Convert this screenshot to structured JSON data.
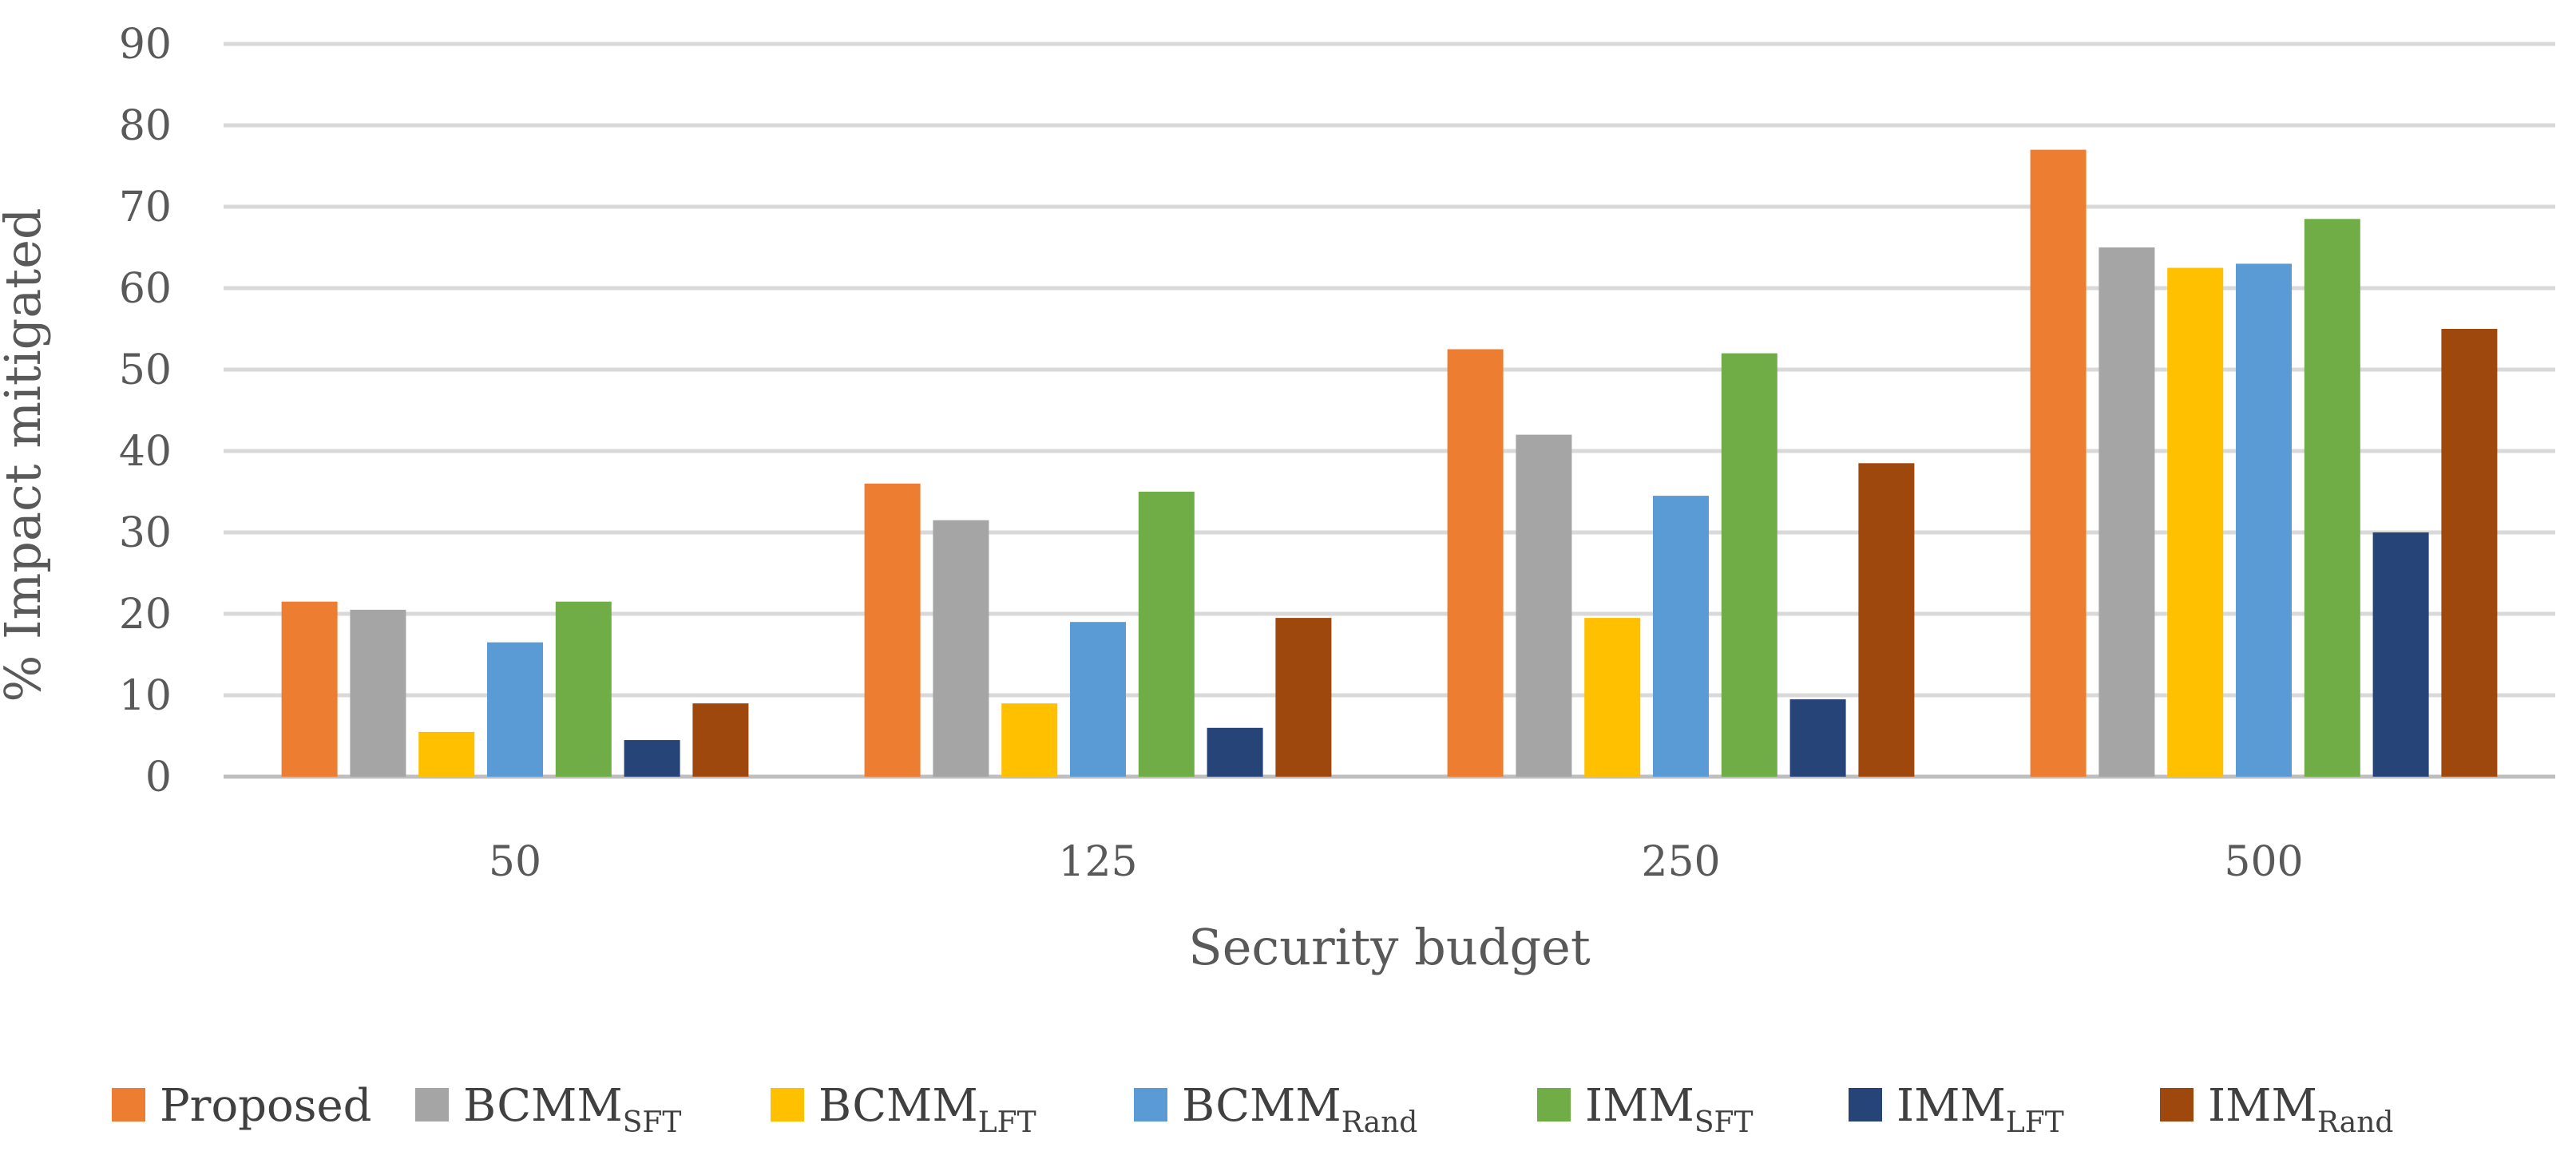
{
  "chart_data": {
    "type": "bar",
    "title": "",
    "xlabel": "Security budget",
    "ylabel": "% Impact mitigated",
    "categories": [
      "50",
      "125",
      "250",
      "500"
    ],
    "ylim": [
      0,
      90
    ],
    "yticks": [
      "0",
      "10",
      "20",
      "30",
      "40",
      "50",
      "60",
      "70",
      "80",
      "90"
    ],
    "grid": true,
    "legend_position": "bottom",
    "series": [
      {
        "name": "Proposed",
        "base": "Proposed",
        "sub": "",
        "color": "#ED7D31",
        "values": [
          21.5,
          36,
          52.5,
          77
        ]
      },
      {
        "name": "BCMM_SFT",
        "base": "BCMM",
        "sub": "SFT",
        "color": "#A5A5A5",
        "values": [
          20.5,
          31.5,
          42,
          65
        ]
      },
      {
        "name": "BCMM_LFT",
        "base": "BCMM",
        "sub": "LFT",
        "color": "#FFC000",
        "values": [
          5.5,
          9,
          19.5,
          62.5
        ]
      },
      {
        "name": "BCMM_Rand",
        "base": "BCMM",
        "sub": "Rand",
        "color": "#5B9BD5",
        "values": [
          16.5,
          19,
          34.5,
          63
        ]
      },
      {
        "name": "IMM_SFT",
        "base": "IMM",
        "sub": "SFT",
        "color": "#70AD47",
        "values": [
          21.5,
          35,
          52,
          68.5
        ]
      },
      {
        "name": "IMM_LFT",
        "base": "IMM",
        "sub": "LFT",
        "color": "#264478",
        "values": [
          4.5,
          6,
          9.5,
          30
        ]
      },
      {
        "name": "IMM_Rand",
        "base": "IMM",
        "sub": "Rand",
        "color": "#9E480E",
        "values": [
          9,
          19.5,
          38.5,
          55
        ]
      }
    ]
  }
}
